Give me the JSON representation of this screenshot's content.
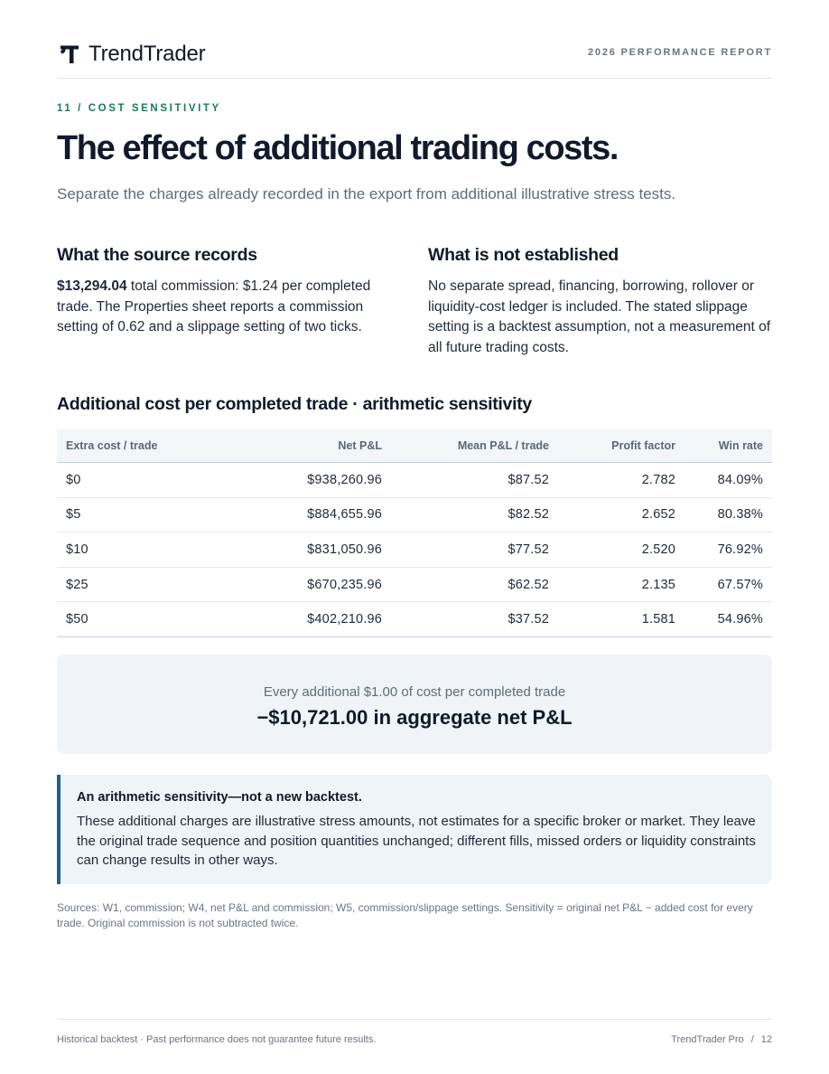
{
  "header": {
    "brand": "TrendTrader",
    "logo_icon": "trendtrader-logo-icon",
    "report_label": "2026 PERFORMANCE REPORT"
  },
  "section": {
    "kicker": "11 / COST SENSITIVITY",
    "title": "The effect of additional trading costs.",
    "subtitle": "Separate the charges already recorded in the export from additional illustrative stress tests."
  },
  "source_records": {
    "heading": "What the source records",
    "amount": "$13,294.04",
    "text": " total commission: $1.24 per completed trade. The Properties sheet reports a commission setting of 0.62 and a slippage setting of two ticks."
  },
  "not_established": {
    "heading": "What is not established",
    "text": "No separate spread, financing, borrowing, rollover or liquidity-cost ledger is included. The stated slippage setting is a backtest assumption, not a measurement of all future trading costs."
  },
  "table": {
    "title": "Additional cost per completed trade · arithmetic sensitivity",
    "headers": [
      "Extra cost / trade",
      "Net P&L",
      "Mean P&L / trade",
      "Profit factor",
      "Win rate"
    ],
    "rows": [
      [
        "$0",
        "$938,260.96",
        "$87.52",
        "2.782",
        "84.09%"
      ],
      [
        "$5",
        "$884,655.96",
        "$82.52",
        "2.652",
        "80.38%"
      ],
      [
        "$10",
        "$831,050.96",
        "$77.52",
        "2.520",
        "76.92%"
      ],
      [
        "$25",
        "$670,235.96",
        "$62.52",
        "2.135",
        "67.57%"
      ],
      [
        "$50",
        "$402,210.96",
        "$37.52",
        "1.581",
        "54.96%"
      ]
    ]
  },
  "highlight": {
    "label": "Every additional $1.00 of cost per completed trade",
    "value": "−$10,721.00 in aggregate net P&L"
  },
  "callout": {
    "title": "An arithmetic sensitivity—not a new backtest.",
    "body": "These additional charges are illustrative stress amounts, not estimates for a specific broker or market. They leave the original trade sequence and position quantities unchanged; different fills, missed orders or liquidity constraints can change results in other ways."
  },
  "sources": "Sources: W1, commission; W4, net P&L and commission; W5, commission/slippage settings. Sensitivity = original net P&L − added cost for every trade. Original commission is not subtracted twice.",
  "footer": {
    "disclaimer": "Historical backtest · Past performance does not guarantee future results.",
    "product": "TrendTrader Pro",
    "separator": "/",
    "page": "12"
  }
}
